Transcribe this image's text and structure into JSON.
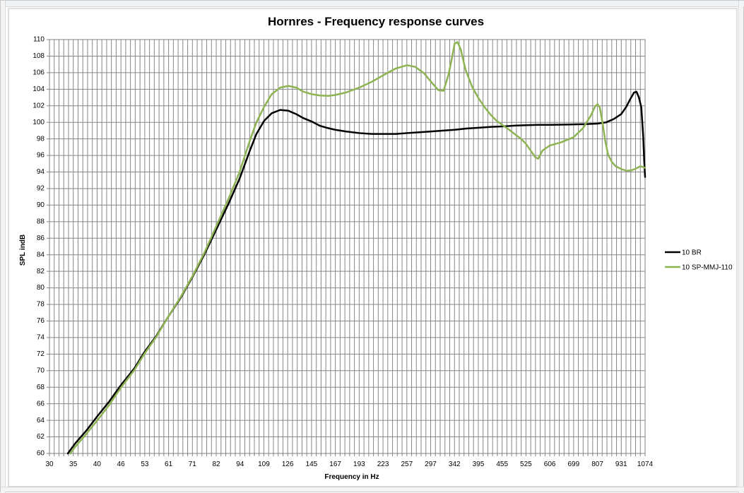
{
  "chart_data": {
    "type": "line",
    "title": "Hornres - Frequency response curves",
    "xlabel": "Frequency in Hz",
    "ylabel": "SPL indB",
    "x_tick_labels": [
      "30",
      "35",
      "40",
      "46",
      "53",
      "61",
      "71",
      "82",
      "94",
      "109",
      "126",
      "145",
      "167",
      "193",
      "223",
      "257",
      "297",
      "342",
      "395",
      "455",
      "525",
      "606",
      "699",
      "807",
      "931",
      "1074"
    ],
    "xlim": [
      30,
      1074
    ],
    "x_scale": "log",
    "ylim": [
      60,
      110
    ],
    "y_step": 2,
    "grid": true,
    "legend_position": "right",
    "series": [
      {
        "name": "10 BR",
        "color": "#000000",
        "points": [
          [
            33.5,
            60
          ],
          [
            35,
            61.2
          ],
          [
            37.5,
            62.8
          ],
          [
            40,
            64.5
          ],
          [
            43,
            66.3
          ],
          [
            46,
            68.2
          ],
          [
            50,
            70.3
          ],
          [
            53,
            72.2
          ],
          [
            57,
            74.2
          ],
          [
            61,
            76.4
          ],
          [
            66,
            78.8
          ],
          [
            71,
            81.4
          ],
          [
            76,
            84
          ],
          [
            82,
            87.2
          ],
          [
            88,
            90.2
          ],
          [
            94,
            93.2
          ],
          [
            100,
            96.6
          ],
          [
            104,
            98.6
          ],
          [
            109,
            100.2
          ],
          [
            114,
            101.1
          ],
          [
            120,
            101.5
          ],
          [
            126,
            101.4
          ],
          [
            132,
            101
          ],
          [
            138,
            100.5
          ],
          [
            145,
            100.1
          ],
          [
            152,
            99.6
          ],
          [
            160,
            99.3
          ],
          [
            167,
            99.1
          ],
          [
            178,
            98.9
          ],
          [
            193,
            98.7
          ],
          [
            208,
            98.6
          ],
          [
            223,
            98.6
          ],
          [
            240,
            98.6
          ],
          [
            257,
            98.7
          ],
          [
            277,
            98.8
          ],
          [
            297,
            98.9
          ],
          [
            320,
            99.0
          ],
          [
            342,
            99.1
          ],
          [
            367,
            99.25
          ],
          [
            395,
            99.35
          ],
          [
            425,
            99.45
          ],
          [
            455,
            99.5
          ],
          [
            490,
            99.6
          ],
          [
            525,
            99.65
          ],
          [
            565,
            99.7
          ],
          [
            606,
            99.7
          ],
          [
            650,
            99.72
          ],
          [
            699,
            99.75
          ],
          [
            750,
            99.78
          ],
          [
            807,
            99.85
          ],
          [
            850,
            100.0
          ],
          [
            890,
            100.4
          ],
          [
            931,
            101.0
          ],
          [
            960,
            101.9
          ],
          [
            985,
            102.9
          ],
          [
            1005,
            103.6
          ],
          [
            1020,
            103.7
          ],
          [
            1035,
            103.0
          ],
          [
            1050,
            101.8
          ],
          [
            1062,
            98.3
          ],
          [
            1068,
            95.5
          ],
          [
            1074,
            93.4
          ]
        ]
      },
      {
        "name": "10 SP-MMJ-110",
        "color": "#8db352",
        "points": [
          [
            34,
            60
          ],
          [
            35,
            60.8
          ],
          [
            37.5,
            62.4
          ],
          [
            40,
            64
          ],
          [
            43,
            65.9
          ],
          [
            46,
            67.9
          ],
          [
            50,
            70.1
          ],
          [
            53,
            72
          ],
          [
            57,
            74.1
          ],
          [
            61,
            76.4
          ],
          [
            66,
            78.9
          ],
          [
            71,
            81.5
          ],
          [
            76,
            84.2
          ],
          [
            82,
            87.6
          ],
          [
            88,
            90.8
          ],
          [
            94,
            94.0
          ],
          [
            100,
            97.8
          ],
          [
            104,
            100
          ],
          [
            109,
            101.9
          ],
          [
            114,
            103.4
          ],
          [
            120,
            104.2
          ],
          [
            126,
            104.4
          ],
          [
            132,
            104.2
          ],
          [
            138,
            103.7
          ],
          [
            145,
            103.4
          ],
          [
            152,
            103.25
          ],
          [
            160,
            103.2
          ],
          [
            167,
            103.3
          ],
          [
            178,
            103.6
          ],
          [
            193,
            104.2
          ],
          [
            208,
            104.9
          ],
          [
            223,
            105.7
          ],
          [
            240,
            106.5
          ],
          [
            257,
            106.9
          ],
          [
            270,
            106.7
          ],
          [
            285,
            105.9
          ],
          [
            297,
            104.9
          ],
          [
            310,
            103.9
          ],
          [
            320,
            103.8
          ],
          [
            330,
            105.8
          ],
          [
            338,
            108.2
          ],
          [
            342,
            109.5
          ],
          [
            348,
            109.7
          ],
          [
            355,
            108.8
          ],
          [
            365,
            106.4
          ],
          [
            380,
            104.3
          ],
          [
            395,
            102.9
          ],
          [
            410,
            101.8
          ],
          [
            425,
            100.9
          ],
          [
            440,
            100.2
          ],
          [
            455,
            99.7
          ],
          [
            475,
            99.1
          ],
          [
            490,
            98.6
          ],
          [
            510,
            98.0
          ],
          [
            525,
            97.4
          ],
          [
            540,
            96.6
          ],
          [
            555,
            95.8
          ],
          [
            565,
            95.6
          ],
          [
            580,
            96.6
          ],
          [
            606,
            97.2
          ],
          [
            650,
            97.6
          ],
          [
            699,
            98.2
          ],
          [
            740,
            99.3
          ],
          [
            775,
            100.8
          ],
          [
            795,
            101.9
          ],
          [
            807,
            102.2
          ],
          [
            818,
            101.8
          ],
          [
            830,
            100.2
          ],
          [
            845,
            97.8
          ],
          [
            860,
            96.1
          ],
          [
            880,
            95.2
          ],
          [
            900,
            94.7
          ],
          [
            931,
            94.35
          ],
          [
            960,
            94.15
          ],
          [
            990,
            94.2
          ],
          [
            1020,
            94.45
          ],
          [
            1045,
            94.7
          ],
          [
            1074,
            94.5
          ]
        ]
      }
    ]
  }
}
